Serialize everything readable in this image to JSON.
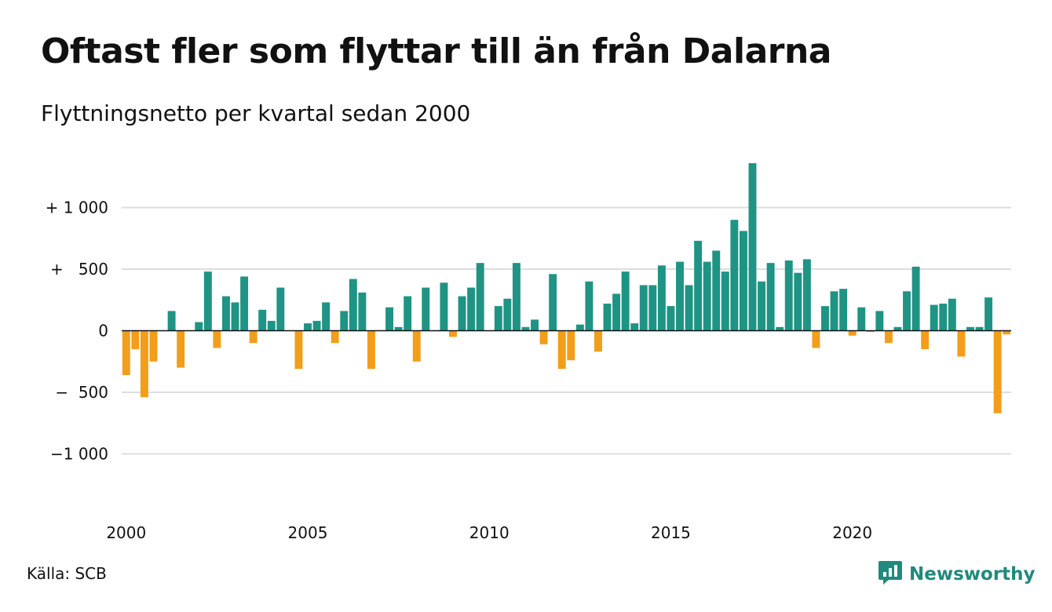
{
  "title": "Oftast fler som flyttar till än från Dalarna",
  "subtitle": "Flyttningsnetto per kvartal sedan 2000",
  "source": "Källa: SCB",
  "brand": {
    "name": "Newsworthy",
    "icon": "newsworthy-logo-icon"
  },
  "colors": {
    "positive": "#1f9484",
    "negative": "#f29e1a",
    "grid": "#dddddd",
    "zero": "#111111"
  },
  "chart_data": {
    "type": "bar",
    "title": "Oftast fler som flyttar till än från Dalarna",
    "subtitle": "Flyttningsnetto per kvartal sedan 2000",
    "x_start": "2000 Q1",
    "ylim": [
      -1400,
      1400
    ],
    "y_ticks": [
      {
        "value": 1000,
        "label": "+ 1 000"
      },
      {
        "value": 500,
        "label": "+   500"
      },
      {
        "value": 0,
        "label": "0"
      },
      {
        "value": -500,
        "label": "−  500"
      },
      {
        "value": -1000,
        "label": "−1 000"
      }
    ],
    "x_ticks": [
      {
        "label": "2000",
        "index": 0
      },
      {
        "label": "2005",
        "index": 20
      },
      {
        "label": "2010",
        "index": 40
      },
      {
        "label": "2015",
        "index": 60
      },
      {
        "label": "2020",
        "index": 80
      }
    ],
    "grid": true,
    "values": [
      -360,
      -150,
      -540,
      -250,
      0,
      160,
      -300,
      0,
      70,
      480,
      -140,
      280,
      230,
      440,
      -100,
      170,
      80,
      350,
      0,
      -310,
      60,
      80,
      230,
      -100,
      160,
      420,
      310,
      -310,
      0,
      190,
      30,
      280,
      -250,
      350,
      0,
      390,
      -50,
      280,
      350,
      550,
      0,
      200,
      260,
      550,
      30,
      90,
      -110,
      460,
      -310,
      -240,
      50,
      400,
      -170,
      220,
      300,
      480,
      60,
      370,
      370,
      530,
      200,
      560,
      370,
      730,
      560,
      650,
      480,
      900,
      810,
      1360,
      400,
      550,
      30,
      570,
      470,
      580,
      -140,
      200,
      320,
      340,
      -40,
      190,
      -10,
      160,
      -100,
      30,
      320,
      520,
      -150,
      210,
      220,
      260,
      -210,
      30,
      30,
      270,
      -670,
      -30
    ]
  }
}
